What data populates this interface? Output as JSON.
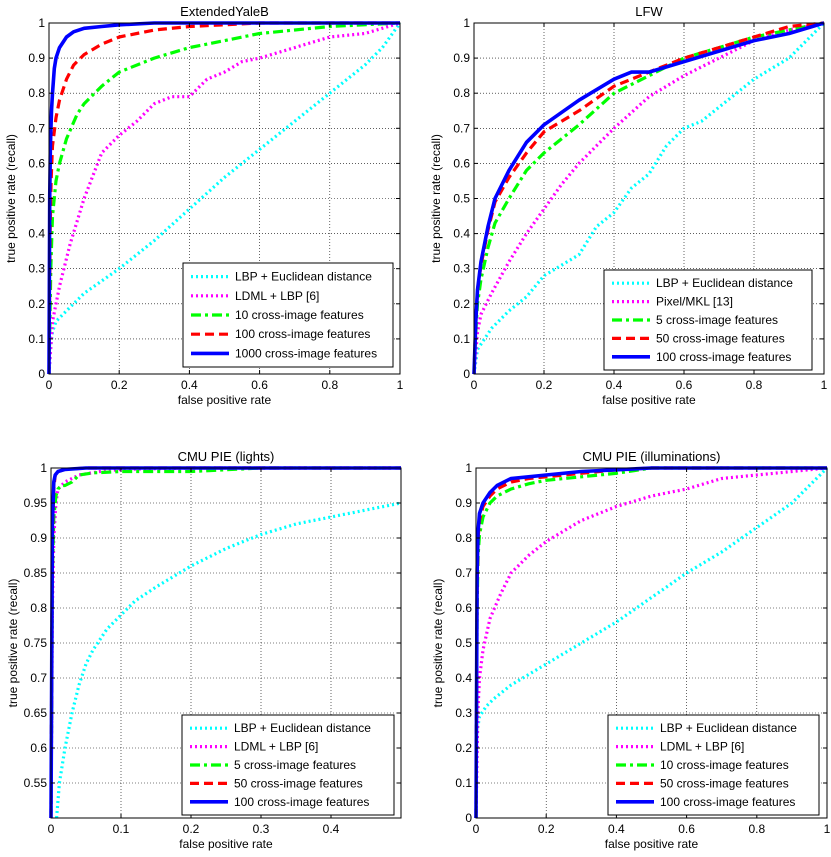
{
  "chart_data": [
    {
      "type": "line",
      "title": "ExtendedYaleB",
      "xlabel": "false positive rate",
      "ylabel": "true positive rate (recall)",
      "xlim": [
        0,
        1
      ],
      "ylim": [
        0,
        1
      ],
      "xticks": [
        0,
        0.2,
        0.4,
        0.6,
        0.8,
        1
      ],
      "yticks": [
        0,
        0.1,
        0.2,
        0.3,
        0.4,
        0.5,
        0.6,
        0.7,
        0.8,
        0.9,
        1
      ],
      "xtick_labels": [
        "0",
        "0.2",
        "0.4",
        "0.6",
        "0.8",
        "1"
      ],
      "ytick_labels": [
        "0",
        "0.1",
        "0.2",
        "0.3",
        "0.4",
        "0.5",
        "0.6",
        "0.7",
        "0.8",
        "0.9",
        "1"
      ],
      "grid": true,
      "legend_position": "bottom-right",
      "series": [
        {
          "name": "LBP + Euclidean distance",
          "color": "#00ffff",
          "style": "dotted",
          "x": [
            0,
            0.005,
            0.01,
            0.02,
            0.05,
            0.1,
            0.2,
            0.3,
            0.4,
            0.5,
            0.6,
            0.7,
            0.8,
            0.9,
            0.95,
            1
          ],
          "y": [
            0,
            0.08,
            0.12,
            0.15,
            0.18,
            0.23,
            0.3,
            0.38,
            0.47,
            0.56,
            0.64,
            0.72,
            0.8,
            0.88,
            0.93,
            1
          ]
        },
        {
          "name": "LDML + LBP [6]",
          "color": "#ff00ff",
          "style": "dotted",
          "x": [
            0,
            0.01,
            0.03,
            0.06,
            0.1,
            0.15,
            0.2,
            0.25,
            0.3,
            0.35,
            0.4,
            0.45,
            0.5,
            0.55,
            0.6,
            0.7,
            0.8,
            0.9,
            1
          ],
          "y": [
            0,
            0.15,
            0.25,
            0.37,
            0.5,
            0.63,
            0.68,
            0.72,
            0.77,
            0.79,
            0.79,
            0.84,
            0.86,
            0.89,
            0.9,
            0.93,
            0.96,
            0.97,
            1
          ]
        },
        {
          "name": "10 cross-image features",
          "color": "#00ff00",
          "style": "dashdot",
          "x": [
            0,
            0.005,
            0.01,
            0.02,
            0.03,
            0.05,
            0.08,
            0.1,
            0.15,
            0.2,
            0.3,
            0.4,
            0.5,
            0.6,
            0.7,
            0.8,
            1
          ],
          "y": [
            0,
            0.3,
            0.45,
            0.55,
            0.6,
            0.67,
            0.74,
            0.77,
            0.82,
            0.86,
            0.9,
            0.93,
            0.95,
            0.97,
            0.98,
            0.99,
            1
          ]
        },
        {
          "name": "100 cross-image features",
          "color": "#ff0000",
          "style": "dashed",
          "x": [
            0,
            0.003,
            0.006,
            0.01,
            0.02,
            0.03,
            0.05,
            0.07,
            0.1,
            0.15,
            0.2,
            0.3,
            0.4,
            0.5,
            0.6,
            1
          ],
          "y": [
            0,
            0.4,
            0.55,
            0.65,
            0.73,
            0.78,
            0.84,
            0.88,
            0.91,
            0.94,
            0.96,
            0.98,
            0.99,
            0.995,
            1,
            1
          ]
        },
        {
          "name": "1000 cross-image features",
          "color": "#0000ff",
          "style": "solid",
          "x": [
            0,
            0.002,
            0.004,
            0.007,
            0.01,
            0.015,
            0.02,
            0.03,
            0.05,
            0.07,
            0.1,
            0.15,
            0.2,
            0.3,
            0.5,
            1
          ],
          "y": [
            0,
            0.5,
            0.65,
            0.75,
            0.8,
            0.87,
            0.9,
            0.93,
            0.96,
            0.975,
            0.985,
            0.99,
            0.995,
            1,
            1,
            1
          ]
        }
      ]
    },
    {
      "type": "line",
      "title": "LFW",
      "xlabel": "false positive rate",
      "ylabel": "true positive rate (recall)",
      "xlim": [
        0,
        1
      ],
      "ylim": [
        0,
        1
      ],
      "xticks": [
        0,
        0.2,
        0.4,
        0.6,
        0.8,
        1
      ],
      "yticks": [
        0,
        0.1,
        0.2,
        0.3,
        0.4,
        0.5,
        0.6,
        0.7,
        0.8,
        0.9,
        1
      ],
      "xtick_labels": [
        "0",
        "0.2",
        "0.4",
        "0.6",
        "0.8",
        "1"
      ],
      "ytick_labels": [
        "0",
        "0.1",
        "0.2",
        "0.3",
        "0.4",
        "0.5",
        "0.6",
        "0.7",
        "0.8",
        "0.9",
        "1"
      ],
      "grid": true,
      "legend_position": "bottom-right",
      "series": [
        {
          "name": "LBP + Euclidean distance",
          "color": "#00ffff",
          "style": "dotted",
          "x": [
            0,
            0.01,
            0.03,
            0.05,
            0.1,
            0.15,
            0.2,
            0.25,
            0.3,
            0.35,
            0.4,
            0.45,
            0.5,
            0.55,
            0.6,
            0.65,
            0.7,
            0.75,
            0.8,
            0.85,
            0.9,
            0.95,
            1
          ],
          "y": [
            0,
            0.07,
            0.1,
            0.13,
            0.18,
            0.22,
            0.28,
            0.31,
            0.34,
            0.42,
            0.46,
            0.53,
            0.57,
            0.65,
            0.7,
            0.72,
            0.76,
            0.8,
            0.84,
            0.87,
            0.9,
            0.95,
            1
          ]
        },
        {
          "name": "Pixel/MKL [13]",
          "color": "#ff00ff",
          "style": "dotted",
          "x": [
            0,
            0.01,
            0.02,
            0.05,
            0.1,
            0.15,
            0.2,
            0.25,
            0.3,
            0.35,
            0.4,
            0.5,
            0.6,
            0.7,
            0.8,
            0.9,
            1
          ],
          "y": [
            0,
            0.12,
            0.17,
            0.23,
            0.32,
            0.4,
            0.47,
            0.54,
            0.6,
            0.65,
            0.7,
            0.79,
            0.85,
            0.9,
            0.95,
            0.98,
            1
          ]
        },
        {
          "name": "5 cross-image features",
          "color": "#00ff00",
          "style": "dashdot",
          "x": [
            0,
            0.005,
            0.01,
            0.02,
            0.04,
            0.06,
            0.1,
            0.15,
            0.2,
            0.3,
            0.4,
            0.5,
            0.6,
            0.7,
            0.8,
            0.9,
            1
          ],
          "y": [
            0,
            0.12,
            0.2,
            0.27,
            0.36,
            0.43,
            0.5,
            0.58,
            0.63,
            0.71,
            0.8,
            0.85,
            0.9,
            0.93,
            0.96,
            0.98,
            1
          ]
        },
        {
          "name": "50 cross-image features",
          "color": "#ff0000",
          "style": "dashed",
          "x": [
            0,
            0.005,
            0.01,
            0.02,
            0.04,
            0.06,
            0.1,
            0.15,
            0.2,
            0.3,
            0.4,
            0.5,
            0.6,
            0.7,
            0.8,
            0.9,
            1
          ],
          "y": [
            0,
            0.15,
            0.24,
            0.31,
            0.41,
            0.49,
            0.56,
            0.63,
            0.69,
            0.75,
            0.82,
            0.86,
            0.9,
            0.93,
            0.96,
            0.99,
            1
          ]
        },
        {
          "name": "100 cross-image features",
          "color": "#0000ff",
          "style": "solid",
          "x": [
            0,
            0.005,
            0.01,
            0.02,
            0.04,
            0.06,
            0.1,
            0.15,
            0.2,
            0.3,
            0.4,
            0.45,
            0.5,
            0.6,
            0.7,
            0.8,
            0.9,
            1
          ],
          "y": [
            0,
            0.15,
            0.24,
            0.32,
            0.42,
            0.5,
            0.58,
            0.66,
            0.71,
            0.78,
            0.84,
            0.86,
            0.86,
            0.89,
            0.92,
            0.95,
            0.97,
            1
          ]
        }
      ]
    },
    {
      "type": "line",
      "title": "CMU PIE (lights)",
      "xlabel": "false positive rate",
      "ylabel": "true positive rate (recall)",
      "xlim": [
        0,
        0.5
      ],
      "ylim": [
        0.5,
        1
      ],
      "xticks": [
        0,
        0.1,
        0.2,
        0.3,
        0.4
      ],
      "yticks": [
        0.55,
        0.6,
        0.65,
        0.7,
        0.75,
        0.8,
        0.85,
        0.9,
        0.95,
        1
      ],
      "xtick_labels": [
        "0",
        "0.1",
        "0.2",
        "0.3",
        "0.4"
      ],
      "ytick_labels": [
        "0.55",
        "0.6",
        "0.65",
        "0.7",
        "0.75",
        "0.8",
        "0.85",
        "0.9",
        "0.95",
        "1"
      ],
      "grid": true,
      "legend_position": "bottom-right",
      "series": [
        {
          "name": "LBP + Euclidean distance",
          "color": "#00ffff",
          "style": "dotted",
          "x": [
            0.008,
            0.012,
            0.02,
            0.03,
            0.04,
            0.05,
            0.06,
            0.08,
            0.1,
            0.12,
            0.15,
            0.2,
            0.25,
            0.3,
            0.35,
            0.4,
            0.45,
            0.5
          ],
          "y": [
            0.5,
            0.55,
            0.6,
            0.65,
            0.69,
            0.72,
            0.74,
            0.77,
            0.79,
            0.81,
            0.83,
            0.86,
            0.885,
            0.905,
            0.92,
            0.93,
            0.94,
            0.95
          ]
        },
        {
          "name": "LDML + LBP [6]",
          "color": "#ff00ff",
          "style": "dotted",
          "x": [
            0,
            0.002,
            0.004,
            0.007,
            0.01,
            0.02,
            0.04,
            0.07,
            0.1,
            0.2,
            0.5
          ],
          "y": [
            0.5,
            0.8,
            0.9,
            0.95,
            0.97,
            0.98,
            0.99,
            0.995,
            0.998,
            1,
            1
          ]
        },
        {
          "name": "5 cross-image features",
          "color": "#00ff00",
          "style": "dashdot",
          "x": [
            0,
            0.002,
            0.004,
            0.007,
            0.01,
            0.015,
            0.02,
            0.03,
            0.04,
            0.06,
            0.1,
            0.2,
            0.3,
            0.5
          ],
          "y": [
            0.5,
            0.85,
            0.93,
            0.96,
            0.97,
            0.975,
            0.975,
            0.98,
            0.99,
            0.993,
            0.995,
            0.995,
            1,
            1
          ]
        },
        {
          "name": "50 cross-image features",
          "color": "#ff0000",
          "style": "dashed",
          "x": [
            0,
            0.002,
            0.004,
            0.006,
            0.01,
            0.02,
            0.05,
            0.1,
            0.5
          ],
          "y": [
            0.5,
            0.9,
            0.97,
            0.99,
            0.995,
            0.998,
            1,
            1,
            1
          ]
        },
        {
          "name": "100 cross-image features",
          "color": "#0000ff",
          "style": "solid",
          "x": [
            0,
            0.002,
            0.004,
            0.006,
            0.01,
            0.02,
            0.05,
            0.1,
            0.5
          ],
          "y": [
            0.5,
            0.92,
            0.98,
            0.99,
            0.995,
            0.998,
            1,
            1,
            1
          ]
        }
      ]
    },
    {
      "type": "line",
      "title": "CMU PIE (illuminations)",
      "xlabel": "false positive rate",
      "ylabel": "true positive rate (recall)",
      "xlim": [
        0,
        1
      ],
      "ylim": [
        0,
        1
      ],
      "xticks": [
        0,
        0.2,
        0.4,
        0.6,
        0.8,
        1
      ],
      "yticks": [
        0,
        0.1,
        0.2,
        0.3,
        0.4,
        0.5,
        0.6,
        0.7,
        0.8,
        0.9,
        1
      ],
      "xtick_labels": [
        "0",
        "0.2",
        "0.4",
        "0.6",
        "0.8",
        "1"
      ],
      "ytick_labels": [
        "0",
        "0.1",
        "0.2",
        "0.3",
        "0.4",
        "0.5",
        "0.6",
        "0.7",
        "0.8",
        "0.9",
        "1"
      ],
      "grid": true,
      "legend_position": "bottom-right",
      "series": [
        {
          "name": "LBP + Euclidean distance",
          "color": "#00ffff",
          "style": "dotted",
          "x": [
            0,
            0.002,
            0.005,
            0.01,
            0.03,
            0.05,
            0.1,
            0.2,
            0.3,
            0.4,
            0.5,
            0.6,
            0.7,
            0.8,
            0.9,
            1
          ],
          "y": [
            0,
            0.2,
            0.26,
            0.29,
            0.32,
            0.34,
            0.38,
            0.44,
            0.5,
            0.56,
            0.63,
            0.7,
            0.76,
            0.83,
            0.9,
            1
          ]
        },
        {
          "name": "LDML + LBP [6]",
          "color": "#ff00ff",
          "style": "dotted",
          "x": [
            0,
            0.005,
            0.01,
            0.02,
            0.04,
            0.07,
            0.1,
            0.15,
            0.2,
            0.3,
            0.4,
            0.5,
            0.6,
            0.7,
            0.8,
            0.9,
            1
          ],
          "y": [
            0,
            0.3,
            0.4,
            0.48,
            0.57,
            0.64,
            0.7,
            0.75,
            0.79,
            0.85,
            0.89,
            0.92,
            0.94,
            0.97,
            0.98,
            0.99,
            1
          ]
        },
        {
          "name": "10 cross-image features",
          "color": "#00ff00",
          "style": "dashdot",
          "x": [
            0,
            0.003,
            0.006,
            0.01,
            0.02,
            0.04,
            0.06,
            0.1,
            0.15,
            0.2,
            0.3,
            0.4,
            0.5,
            1
          ],
          "y": [
            0,
            0.6,
            0.75,
            0.81,
            0.86,
            0.9,
            0.92,
            0.94,
            0.955,
            0.965,
            0.975,
            0.985,
            1,
            1
          ]
        },
        {
          "name": "50 cross-image features",
          "color": "#ff0000",
          "style": "dashed",
          "x": [
            0,
            0.003,
            0.006,
            0.01,
            0.02,
            0.04,
            0.06,
            0.1,
            0.15,
            0.2,
            0.3,
            0.4,
            0.5,
            1
          ],
          "y": [
            0,
            0.65,
            0.8,
            0.85,
            0.89,
            0.92,
            0.94,
            0.96,
            0.97,
            0.975,
            0.985,
            0.995,
            1,
            1
          ]
        },
        {
          "name": "100 cross-image features",
          "color": "#0000ff",
          "style": "solid",
          "x": [
            0,
            0.003,
            0.006,
            0.01,
            0.02,
            0.04,
            0.06,
            0.1,
            0.15,
            0.2,
            0.3,
            0.4,
            0.5,
            1
          ],
          "y": [
            0,
            0.7,
            0.82,
            0.87,
            0.9,
            0.93,
            0.95,
            0.97,
            0.975,
            0.98,
            0.99,
            0.995,
            1,
            1
          ]
        }
      ]
    }
  ]
}
